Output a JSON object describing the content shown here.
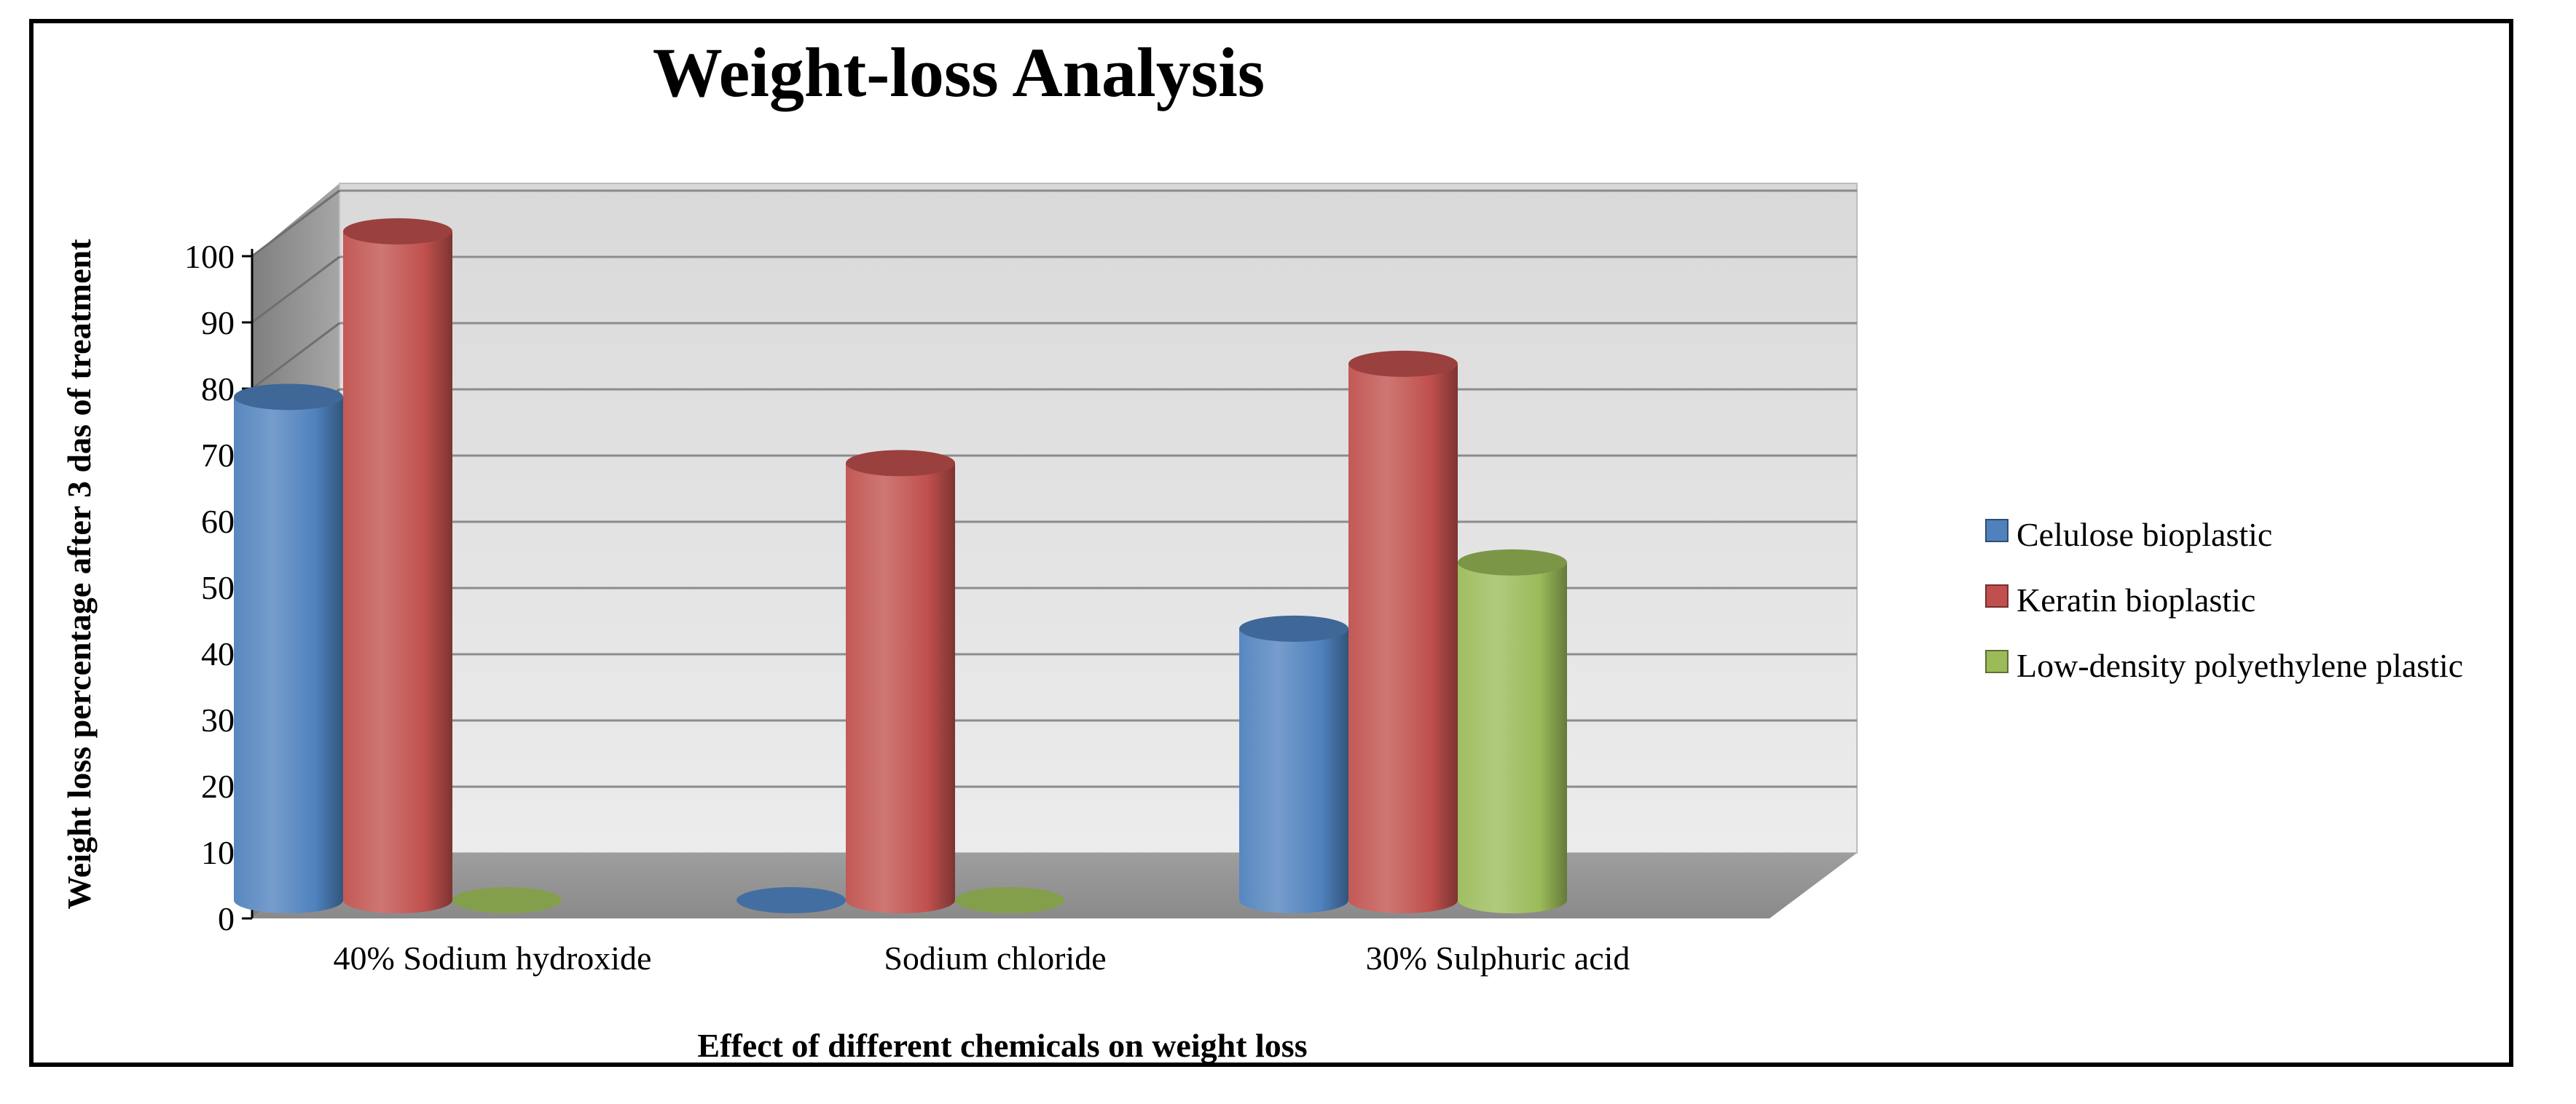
{
  "chart_data": {
    "type": "bar",
    "title": "Weight-loss Analysis",
    "xlabel": "Effect of different chemicals on weight loss",
    "ylabel": "Weight loss percentage after 3 das of treatment",
    "ylim": [
      0,
      100
    ],
    "yticks": [
      0,
      10,
      20,
      30,
      40,
      50,
      60,
      70,
      80,
      90,
      100
    ],
    "grid": true,
    "legend_position": "right",
    "categories": [
      "40% Sodium hydroxide",
      "Sodium chloride",
      "30% Sulphuric acid"
    ],
    "series": [
      {
        "name": "Celulose bioplastic",
        "values": [
          76,
          0,
          41
        ],
        "color": "#4F81BD"
      },
      {
        "name": "Keratin bioplastic",
        "values": [
          101,
          66,
          81
        ],
        "color": "#C0504D"
      },
      {
        "name": "Low-density polyethylene plastic",
        "values": [
          0,
          0,
          51
        ],
        "color": "#9BBB59"
      }
    ]
  }
}
